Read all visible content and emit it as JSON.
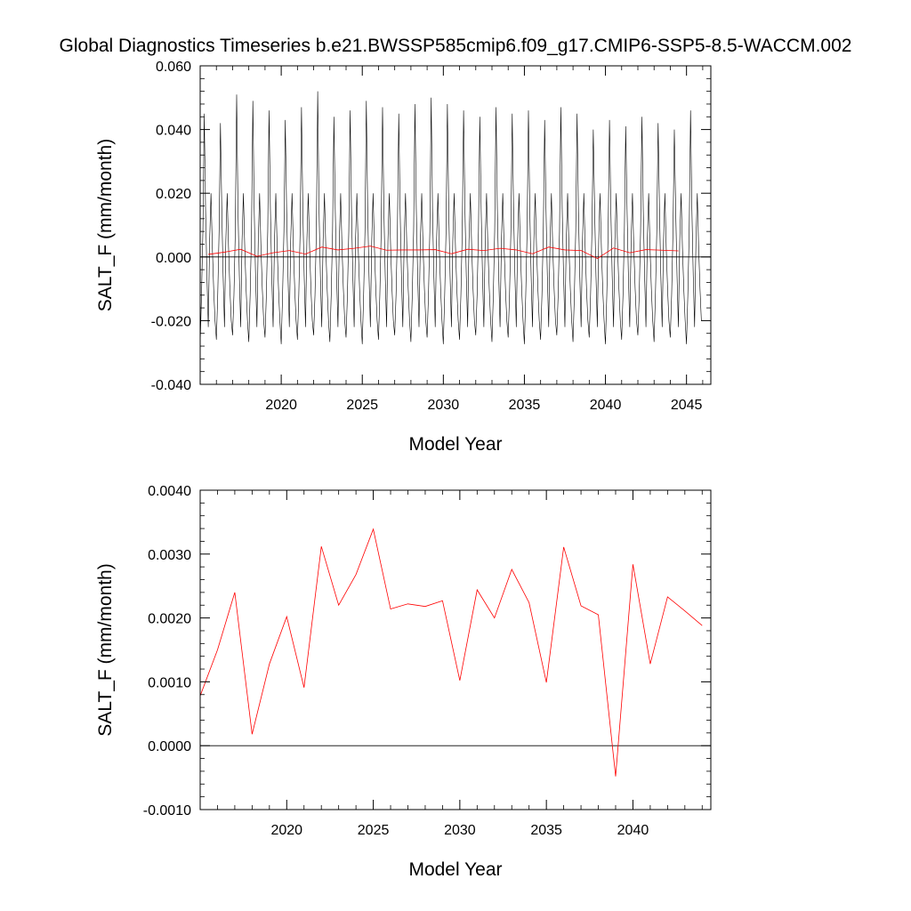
{
  "title": "Global Diagnostics Timeseries b.e21.BWSSP585cmip6.f09_g17.CMIP6-SSP5-8.5-WACCM.002",
  "chart_data": [
    {
      "type": "line",
      "xlabel": "Model Year",
      "ylabel": "SALT_F (mm/month)",
      "xlim": [
        2015.0,
        2046.5
      ],
      "ylim": [
        -0.04,
        0.06
      ],
      "xticks": [
        2020,
        2025,
        2030,
        2035,
        2040,
        2045
      ],
      "xtick_labels": [
        "2020",
        "2025",
        "2030",
        "2035",
        "2040",
        "2045"
      ],
      "yticks": [
        -0.04,
        -0.02,
        0.0,
        0.02,
        0.04,
        0.06
      ],
      "ytick_labels": [
        "-0.040",
        "-0.020",
        "0.000",
        "0.020",
        "0.040",
        "0.060"
      ],
      "reference_line": 0.0,
      "monthly_pattern": [
        -0.026,
        -0.012,
        0.008,
        0.042,
        0.015,
        -0.006,
        -0.022,
        0.005,
        0.02,
        0.003,
        -0.01,
        -0.02
      ],
      "annual_peaks": [
        0.045,
        0.042,
        0.051,
        0.049,
        0.046,
        0.043,
        0.047,
        0.052,
        0.044,
        0.046,
        0.049,
        0.047,
        0.045,
        0.048,
        0.05,
        0.048,
        0.046,
        0.044,
        0.047,
        0.045,
        0.046,
        0.043,
        0.047,
        0.045,
        0.04,
        0.043,
        0.041,
        0.044,
        0.042,
        0.04,
        0.046
      ],
      "series": [
        {
          "name": "",
          "color": "#000000",
          "kind": "monthly",
          "x_start": 2015.0,
          "step": 0.08333,
          "values": []
        },
        {
          "name": "",
          "color": "#ff0000",
          "kind": "annual",
          "x": [
            2015.5,
            2016.5,
            2017.5,
            2018.5,
            2019.5,
            2020.5,
            2021.5,
            2022.5,
            2023.5,
            2024.5,
            2025.5,
            2026.5,
            2027.5,
            2028.5,
            2029.5,
            2030.5,
            2031.5,
            2032.5,
            2033.5,
            2034.5,
            2035.5,
            2036.5,
            2037.5,
            2038.5,
            2039.5,
            2040.5,
            2041.5,
            2042.5,
            2043.5,
            2044.5
          ],
          "values": [
            0.0008,
            0.0015,
            0.0024,
            0.0002,
            0.0013,
            0.002,
            0.0009,
            0.0031,
            0.0022,
            0.0027,
            0.0034,
            0.0021,
            0.0022,
            0.0022,
            0.0023,
            0.001,
            0.0024,
            0.002,
            0.0027,
            0.0022,
            0.001,
            0.0031,
            0.0022,
            0.002,
            -0.0005,
            0.0028,
            0.0013,
            0.0023,
            0.0021,
            0.0019
          ]
        }
      ]
    },
    {
      "type": "line",
      "xlabel": "Model Year",
      "ylabel": "SALT_F (mm/month)",
      "xlim": [
        2015.0,
        2044.5
      ],
      "ylim": [
        -0.001,
        0.004
      ],
      "xticks": [
        2020,
        2025,
        2030,
        2035,
        2040
      ],
      "xtick_labels": [
        "2020",
        "2025",
        "2030",
        "2035",
        "2040"
      ],
      "yticks": [
        -0.001,
        0.0,
        0.001,
        0.002,
        0.003,
        0.004
      ],
      "ytick_labels": [
        "-0.0010",
        "0.0000",
        "0.0010",
        "0.0020",
        "0.0030",
        "0.0040"
      ],
      "reference_line": 0.0,
      "series": [
        {
          "name": "",
          "color": "#ff0000",
          "kind": "annual",
          "x": [
            2015.0,
            2016.0,
            2017.0,
            2018.0,
            2019.0,
            2020.0,
            2021.0,
            2022.0,
            2023.0,
            2024.0,
            2025.0,
            2026.0,
            2027.0,
            2028.0,
            2029.0,
            2030.0,
            2031.0,
            2032.0,
            2033.0,
            2034.0,
            2035.0,
            2036.0,
            2037.0,
            2038.0,
            2039.0,
            2040.0,
            2041.0,
            2042.0,
            2043.0,
            2044.0
          ],
          "values": [
            0.00078,
            0.0015,
            0.0024,
            0.00018,
            0.00128,
            0.00202,
            0.00091,
            0.00312,
            0.0022,
            0.00268,
            0.00339,
            0.00214,
            0.00222,
            0.00218,
            0.00227,
            0.00102,
            0.00244,
            0.002,
            0.00276,
            0.00224,
            0.00099,
            0.00311,
            0.00219,
            0.00205,
            -0.00048,
            0.00284,
            0.00128,
            0.00233,
            0.00211,
            0.00188
          ]
        }
      ]
    }
  ]
}
